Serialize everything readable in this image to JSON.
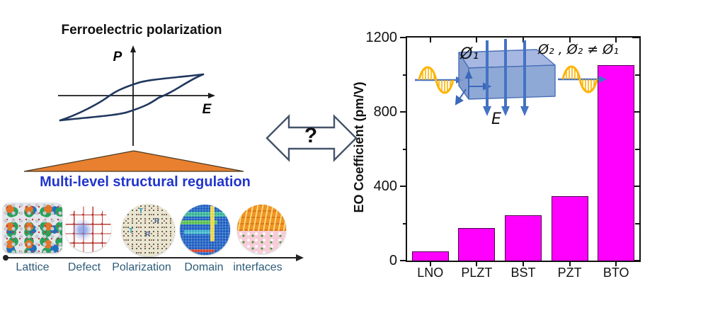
{
  "left_panel": {
    "title": "Ferroelectric polarization",
    "hysteresis": {
      "p_label": "P",
      "e_label": "E"
    },
    "regulation_heading": "Multi-level structural regulation",
    "levels": [
      {
        "label": "Lattice",
        "image": "crystal-lattice"
      },
      {
        "label": "Defect",
        "image": "defect-lattice"
      },
      {
        "label": "Polarization",
        "image": "polarization-map",
        "letters": [
          "T",
          "R",
          "T",
          "R"
        ]
      },
      {
        "label": "Domain",
        "image": "domain-mosaic"
      },
      {
        "label": "interfaces",
        "image": "interface-layers"
      }
    ]
  },
  "connector": {
    "question_mark": "?"
  },
  "inset": {
    "input_phase": "Ø₁",
    "output_phase": "Ø₂ , Ø₂ ≠ Ø₁",
    "field_label": "E"
  },
  "chart_data": {
    "type": "bar",
    "title": "",
    "categories": [
      "LNO",
      "PLZT",
      "BST",
      "PZT",
      "BTO"
    ],
    "values": [
      50,
      175,
      245,
      345,
      1050
    ],
    "xlabel": "",
    "ylabel": "EO Coefficient (pm/V)",
    "ylim": [
      0,
      1200
    ],
    "yticks": [
      0,
      400,
      800,
      1200
    ],
    "minor_yticks": [
      200,
      600,
      1000
    ],
    "bar_color": "#FF00FF",
    "bar_edge_color": "#4d004d",
    "legend": false,
    "grid": false
  },
  "colors": {
    "heading_blue": "#2135CC",
    "triangle_orange": "#E8802F",
    "loop_navy": "#20375E",
    "wave_gold": "#FFB300",
    "beam_blue": "#4472C4",
    "crystal_blue": "#87A2D3",
    "level_label_blue": "#2d5b78",
    "axis_black": "#111111"
  }
}
